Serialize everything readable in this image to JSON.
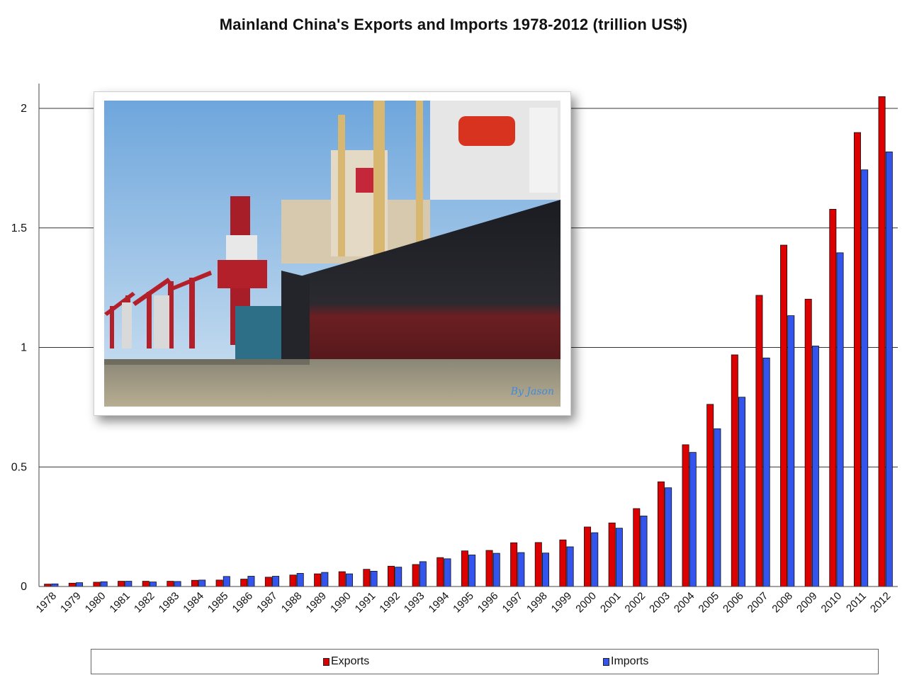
{
  "chart_data": {
    "type": "bar",
    "title": "Mainland China's Exports and Imports 1978-2012 (trillion US$)",
    "xlabel": "",
    "ylabel": "",
    "ylim": [
      0,
      2
    ],
    "yticks": [
      "0",
      "0.5",
      "1",
      "1.5",
      "2"
    ],
    "grid": true,
    "legend_position": "bottom",
    "categories": [
      "1978",
      "1979",
      "1980",
      "1981",
      "1982",
      "1983",
      "1984",
      "1985",
      "1986",
      "1987",
      "1988",
      "1989",
      "1990",
      "1991",
      "1992",
      "1993",
      "1994",
      "1995",
      "1996",
      "1997",
      "1998",
      "1999",
      "2000",
      "2001",
      "2002",
      "2003",
      "2004",
      "2005",
      "2006",
      "2007",
      "2008",
      "2009",
      "2010",
      "2011",
      "2012"
    ],
    "series": [
      {
        "name": "Exports",
        "color": "#dd0000",
        "values": [
          0.01,
          0.014,
          0.018,
          0.022,
          0.022,
          0.022,
          0.026,
          0.027,
          0.031,
          0.039,
          0.048,
          0.053,
          0.062,
          0.072,
          0.085,
          0.092,
          0.121,
          0.149,
          0.151,
          0.183,
          0.184,
          0.195,
          0.249,
          0.266,
          0.326,
          0.438,
          0.593,
          0.762,
          0.969,
          1.218,
          1.428,
          1.202,
          1.578,
          1.899,
          2.049
        ]
      },
      {
        "name": "Imports",
        "color": "#3355ee",
        "values": [
          0.011,
          0.016,
          0.02,
          0.022,
          0.019,
          0.021,
          0.027,
          0.042,
          0.043,
          0.043,
          0.055,
          0.059,
          0.053,
          0.064,
          0.081,
          0.104,
          0.116,
          0.132,
          0.139,
          0.142,
          0.14,
          0.166,
          0.225,
          0.244,
          0.295,
          0.413,
          0.561,
          0.66,
          0.792,
          0.956,
          1.133,
          1.006,
          1.396,
          1.743,
          1.818
        ]
      }
    ]
  },
  "photo": {
    "watermark": "By Jason"
  }
}
